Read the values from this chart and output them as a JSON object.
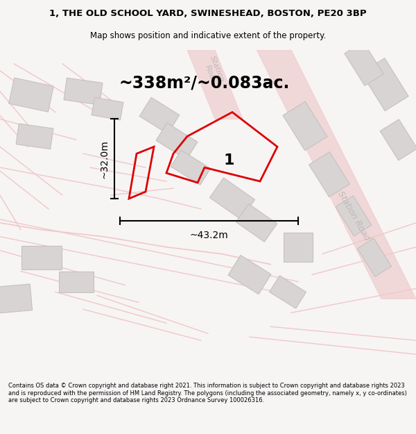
{
  "title_line1": "1, THE OLD SCHOOL YARD, SWINESHEAD, BOSTON, PE20 3BP",
  "title_line2": "Map shows position and indicative extent of the property.",
  "area_text": "~338m²/~0.083ac.",
  "dim_width": "~43.2m",
  "dim_height": "~32.0m",
  "plot_number": "1",
  "footer_text": "Contains OS data © Crown copyright and database right 2021. This information is subject to Crown copyright and database rights 2023 and is reproduced with the permission of HM Land Registry. The polygons (including the associated geometry, namely x, y co-ordinates) are subject to Crown copyright and database rights 2023 Ordnance Survey 100026316.",
  "bg_color": "#f7f4f4",
  "map_bg": "#ffffff",
  "road_line_color": "#f0c8c8",
  "road_fill_color": "#f0d8d8",
  "bld_fill": "#d8d4d4",
  "bld_edge": "#c8c0c0",
  "plot_stroke": "#dd0000",
  "road_label_color": "#c0b8b8",
  "station_road_label": "Station Road",
  "dim_line_color": "#000000",
  "title_fontsize": 9.5,
  "subtitle_fontsize": 8.5,
  "area_fontsize": 17,
  "plot_num_fontsize": 16,
  "dim_fontsize": 10,
  "road_label_fontsize": 9,
  "footer_fontsize": 6.0
}
